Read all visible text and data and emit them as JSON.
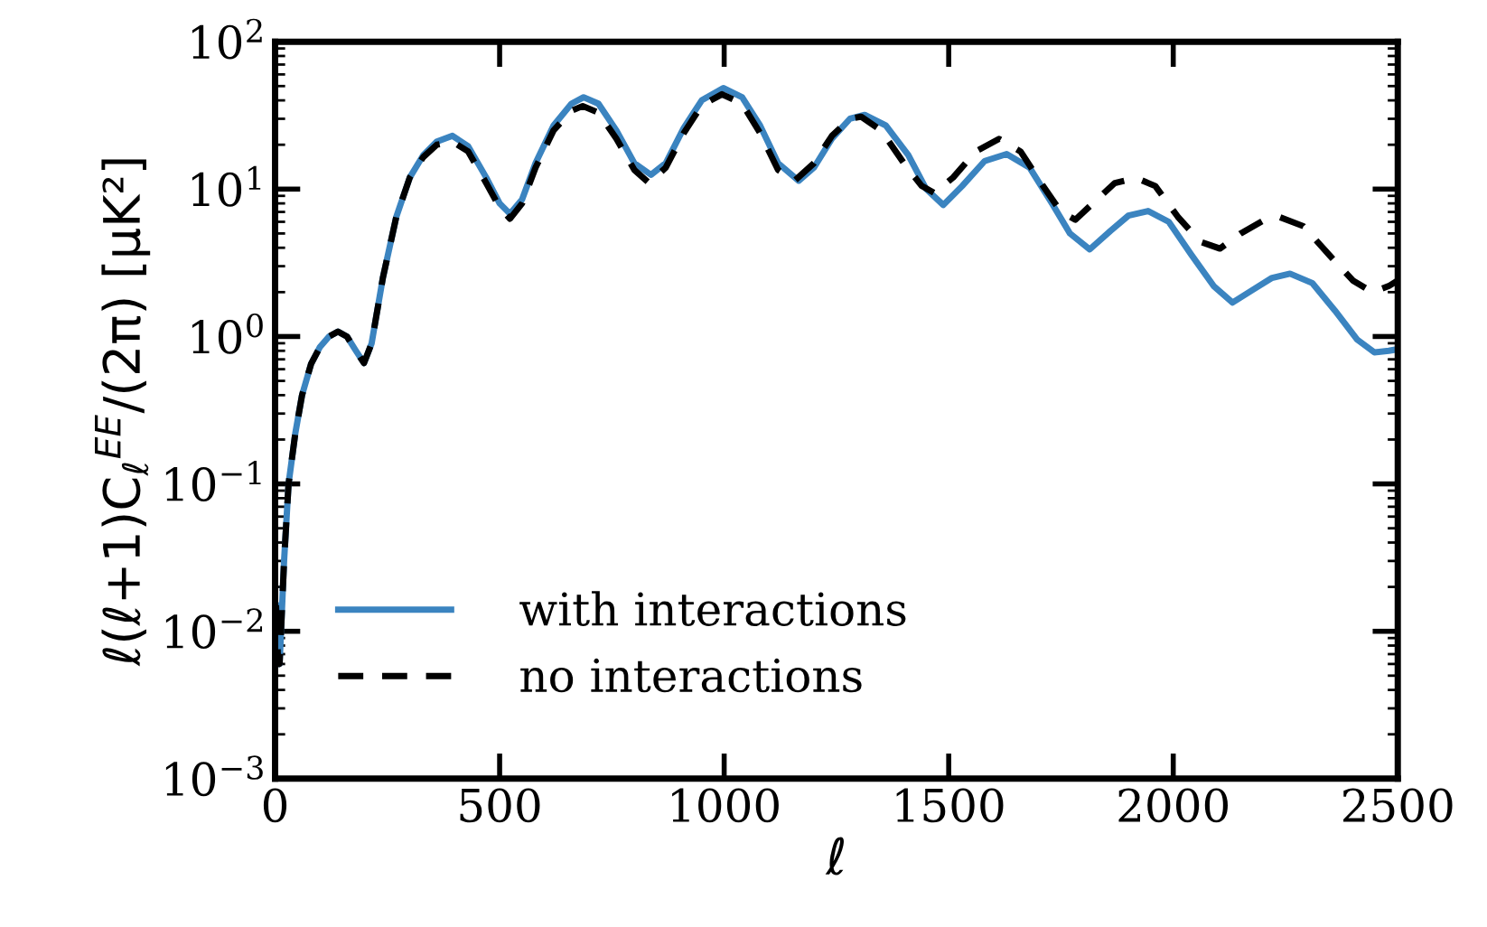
{
  "chart_data": {
    "type": "line",
    "xlabel": "ℓ",
    "ylabel": "ℓ(ℓ+1)C$_{ℓ}$$^{EE}$/(2π) [μK²]",
    "log": "y",
    "xlim": [
      0,
      2500
    ],
    "ylim": [
      0.001,
      100
    ],
    "xticks": [
      0,
      500,
      1000,
      1500,
      2000,
      2500
    ],
    "yticks": [
      {
        "value": 0.001,
        "label": "10$^{−3}$"
      },
      {
        "value": 0.01,
        "label": "10$^{−2}$"
      },
      {
        "value": 0.1,
        "label": "10$^{−1}$"
      },
      {
        "value": 1,
        "label": "10$^{0}$"
      },
      {
        "value": 10,
        "label": "10$^{1}$"
      },
      {
        "value": 100,
        "label": "10$^{2}$"
      }
    ],
    "grid": false,
    "legend": "bottom left",
    "series": [
      {
        "name": "with interactions",
        "color": "#3b84c0",
        "line_style": "solid",
        "x": [
          2,
          6,
          10,
          20,
          30,
          45,
          60,
          80,
          100,
          120,
          140,
          160,
          180,
          198,
          215,
          240,
          270,
          300,
          330,
          360,
          395,
          430,
          470,
          500,
          523,
          550,
          580,
          620,
          660,
          687,
          720,
          760,
          800,
          837,
          870,
          910,
          950,
          998,
          1040,
          1080,
          1120,
          1166,
          1200,
          1240,
          1280,
          1313,
          1360,
          1410,
          1450,
          1488,
          1530,
          1580,
          1629,
          1680,
          1730,
          1770,
          1814,
          1860,
          1900,
          1944,
          1990,
          2040,
          2090,
          2132,
          2180,
          2220,
          2260,
          2310,
          2360,
          2410,
          2448,
          2480,
          2500
        ],
        "values": [
          0.015,
          0.007,
          0.006,
          0.03,
          0.1,
          0.22,
          0.4,
          0.65,
          0.85,
          1.0,
          1.08,
          1.0,
          0.8,
          0.66,
          0.9,
          2.5,
          6.5,
          12,
          17,
          21,
          23,
          19.5,
          12,
          8,
          6.8,
          8.5,
          15,
          27,
          38,
          42,
          38,
          25,
          15,
          12.5,
          15,
          26,
          40,
          48.5,
          42,
          27,
          15,
          11.4,
          14,
          22,
          30,
          31.9,
          27,
          17,
          10,
          7.8,
          10.5,
          15.5,
          17.3,
          14,
          8,
          5,
          3.9,
          5.2,
          6.6,
          7.1,
          6,
          3.6,
          2.2,
          1.7,
          2.1,
          2.5,
          2.67,
          2.3,
          1.5,
          0.95,
          0.78,
          0.8,
          0.82
        ]
      },
      {
        "name": "no interactions",
        "color": "#000000",
        "line_style": "dashed",
        "x": [
          2,
          6,
          10,
          20,
          30,
          45,
          60,
          80,
          100,
          120,
          140,
          160,
          180,
          198,
          215,
          240,
          270,
          300,
          330,
          360,
          395,
          430,
          470,
          500,
          523,
          550,
          580,
          620,
          660,
          685,
          720,
          760,
          800,
          833,
          870,
          910,
          950,
          995,
          1040,
          1080,
          1120,
          1157,
          1200,
          1240,
          1280,
          1305,
          1350,
          1400,
          1440,
          1468,
          1510,
          1560,
          1612,
          1660,
          1710,
          1750,
          1782,
          1830,
          1870,
          1917,
          1960,
          2010,
          2060,
          2104,
          2150,
          2200,
          2238,
          2290,
          2350,
          2400,
          2443,
          2480,
          2500
        ],
        "values": [
          0.015,
          0.007,
          0.006,
          0.03,
          0.1,
          0.22,
          0.4,
          0.65,
          0.85,
          1.0,
          1.08,
          1.0,
          0.8,
          0.66,
          0.9,
          2.5,
          6.5,
          12,
          16.5,
          20,
          21,
          18,
          11,
          7.5,
          6.3,
          8,
          14,
          25,
          34,
          36.6,
          33,
          22,
          13.5,
          11,
          14,
          24,
          37,
          44,
          38,
          24,
          13.5,
          11.4,
          15,
          23,
          30,
          31,
          25,
          15,
          10.5,
          9.4,
          12,
          18,
          21.9,
          18,
          10.5,
          7,
          6.2,
          8.5,
          11,
          11.9,
          10.5,
          6.5,
          4.4,
          3.95,
          5,
          6.1,
          6.45,
          5.6,
          3.5,
          2.4,
          2.0,
          2.2,
          2.4
        ]
      }
    ]
  }
}
